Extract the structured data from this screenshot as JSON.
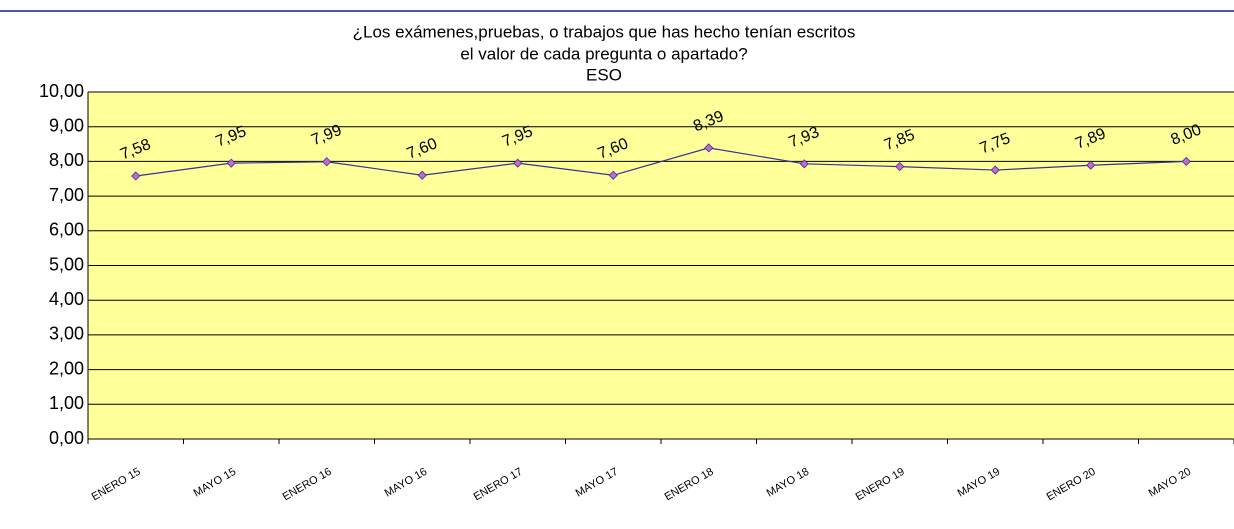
{
  "chart_data": {
    "type": "line",
    "title": [
      "¿Los exámenes,pruebas,  o trabajos que has hecho tenían escritos",
      "el valor de cada pregunta o apartado?"
    ],
    "subtitle": "ESO",
    "categories": [
      "ENERO 15",
      "MAYO 15",
      "ENERO 16",
      "MAYO 16",
      "ENERO 17",
      "MAYO 17",
      "ENERO 18",
      "MAYO 18",
      "ENERO 19",
      "MAYO 19",
      "ENERO 20",
      "MAYO 20"
    ],
    "values": [
      7.58,
      7.95,
      7.99,
      7.6,
      7.95,
      7.6,
      8.39,
      7.93,
      7.85,
      7.75,
      7.89,
      8.0
    ],
    "value_labels": [
      "7,58",
      "7,95",
      "7,99",
      "7,60",
      "7,95",
      "7,60",
      "8,39",
      "7,93",
      "7,85",
      "7,75",
      "7,89",
      "8,00"
    ],
    "color": "#333399",
    "marker_color": "#cc66cc",
    "background": "#ffff99",
    "ylim": [
      0,
      10
    ],
    "yticks": [
      {
        "value": 0,
        "label": "0,00"
      },
      {
        "value": 1,
        "label": "1,00"
      },
      {
        "value": 2,
        "label": "2,00"
      },
      {
        "value": 3,
        "label": "3,00"
      },
      {
        "value": 4,
        "label": "4,00"
      },
      {
        "value": 5,
        "label": "5,00"
      },
      {
        "value": 6,
        "label": "6,00"
      },
      {
        "value": 7,
        "label": "7,00"
      },
      {
        "value": 8,
        "label": "8,00"
      },
      {
        "value": 9,
        "label": "9,00"
      },
      {
        "value": 10,
        "label": "10,00"
      }
    ],
    "grid": true
  }
}
